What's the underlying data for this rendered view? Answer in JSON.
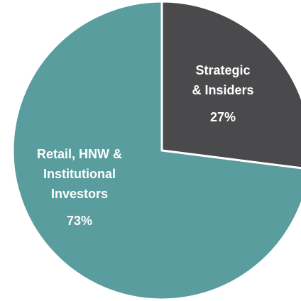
{
  "chart_data": {
    "type": "pie",
    "categories": [
      [
        "Strategic",
        "& Insiders"
      ],
      [
        "Retail, HNW &",
        "Institutional",
        "Investors"
      ]
    ],
    "values": [
      27,
      73
    ],
    "value_labels": [
      "27%",
      "73%"
    ],
    "colors": [
      "#4a4a4c",
      "#5a9d9f"
    ]
  }
}
